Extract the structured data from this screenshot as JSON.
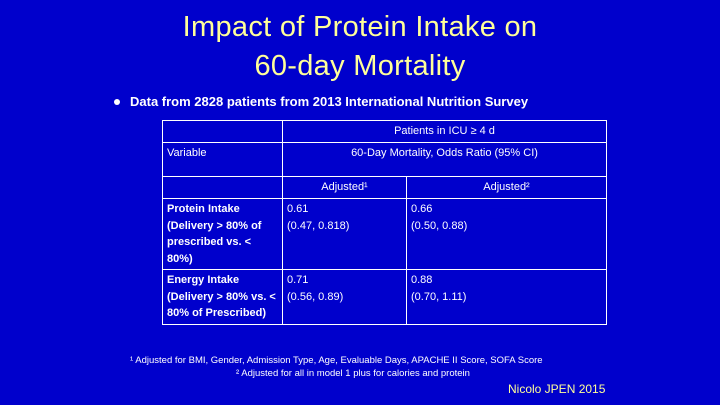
{
  "slide": {
    "title_line1": "Impact of Protein Intake on",
    "title_line2": "60-day Mortality",
    "bullet": "Data from 2828 patients from 2013 International Nutrition Survey"
  },
  "table": {
    "group_header": "Patients in ICU ≥ 4 d",
    "variable_header": "Variable",
    "outcome_header": "60-Day Mortality, Odds Ratio  (95% CI)",
    "adjusted1_header": "Adjusted¹",
    "adjusted2_header": "Adjusted²",
    "rows": [
      {
        "variable": "Protein Intake (Delivery > 80% of prescribed vs. < 80%)",
        "adj1_or": "0.61",
        "adj1_ci": "(0.47, 0.818)",
        "adj2_or": "0.66",
        "adj2_ci": "(0.50, 0.88)"
      },
      {
        "variable": "Energy Intake (Delivery > 80% vs. < 80% of Prescribed)",
        "adj1_or": "0.71",
        "adj1_ci": "(0.56, 0.89)",
        "adj2_or": "0.88",
        "adj2_ci": "(0.70, 1.11)"
      }
    ]
  },
  "footnotes": {
    "note1": "¹ Adjusted for BMI, Gender, Admission Type, Age, Evaluable Days, APACHE II Score, SOFA Score",
    "note2": "² Adjusted for all in model 1 plus for calories and protein"
  },
  "citation": "Nicolo JPEN 2015",
  "colors": {
    "background": "#0000cc",
    "title": "#ffff99",
    "text": "#ffffff"
  }
}
